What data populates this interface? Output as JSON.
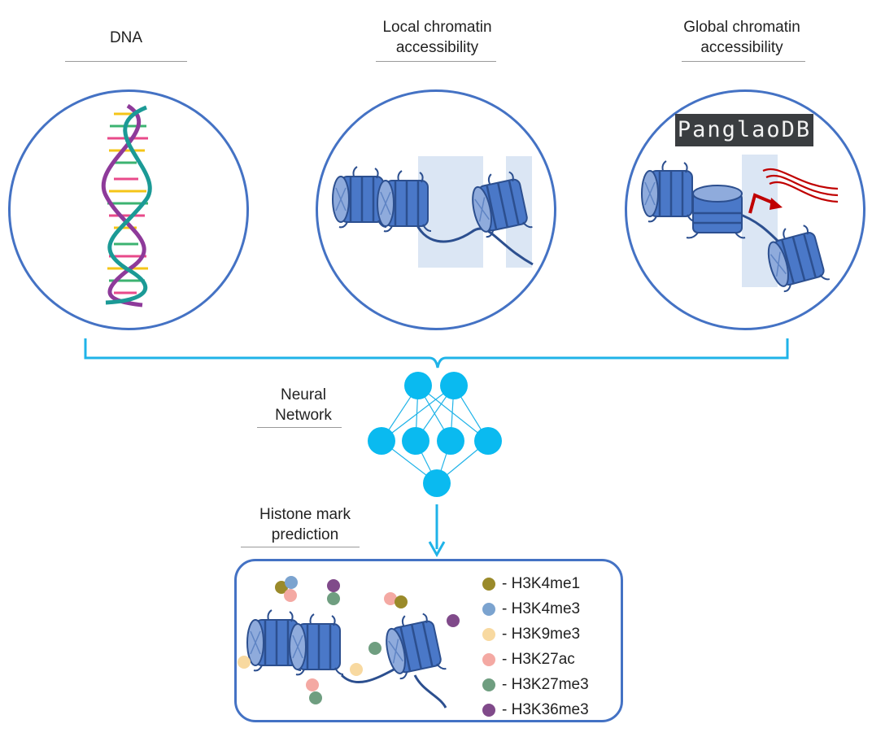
{
  "titles": {
    "dna": "DNA",
    "local_1": "Local chromatin",
    "local_2": "accessibility",
    "global_1": "Global chromatin",
    "global_2": "accessibility",
    "nn_1": "Neural",
    "nn_2": "Network",
    "hist_1": "Histone mark",
    "hist_2": "prediction"
  },
  "logo": {
    "text": "PanglaoDB"
  },
  "legend": [
    {
      "name": "H3K4me1",
      "label": "- H3K4me1",
      "color": "#9a8a2a"
    },
    {
      "name": "H3K4me3",
      "label": "- H3K4me3",
      "color": "#7ba3cf"
    },
    {
      "name": "H3K9me3",
      "label": "- H3K9me3",
      "color": "#f8d9a0"
    },
    {
      "name": "H3K27ac",
      "label": "- H3K27ac",
      "color": "#f4a9a3"
    },
    {
      "name": "H3K27me3",
      "label": "- H3K27me3",
      "color": "#6f9e80"
    },
    {
      "name": "H3K36me3",
      "label": "- H3K36me3",
      "color": "#804a8a"
    }
  ],
  "colors": {
    "circle_border": "#4472c4",
    "bracket": "#1fb3e8",
    "nn_node": "#0abaf0",
    "nucleosome": "#4472c4",
    "accessible_region": "#dbe6f4",
    "arrow_red": "#c00000"
  }
}
